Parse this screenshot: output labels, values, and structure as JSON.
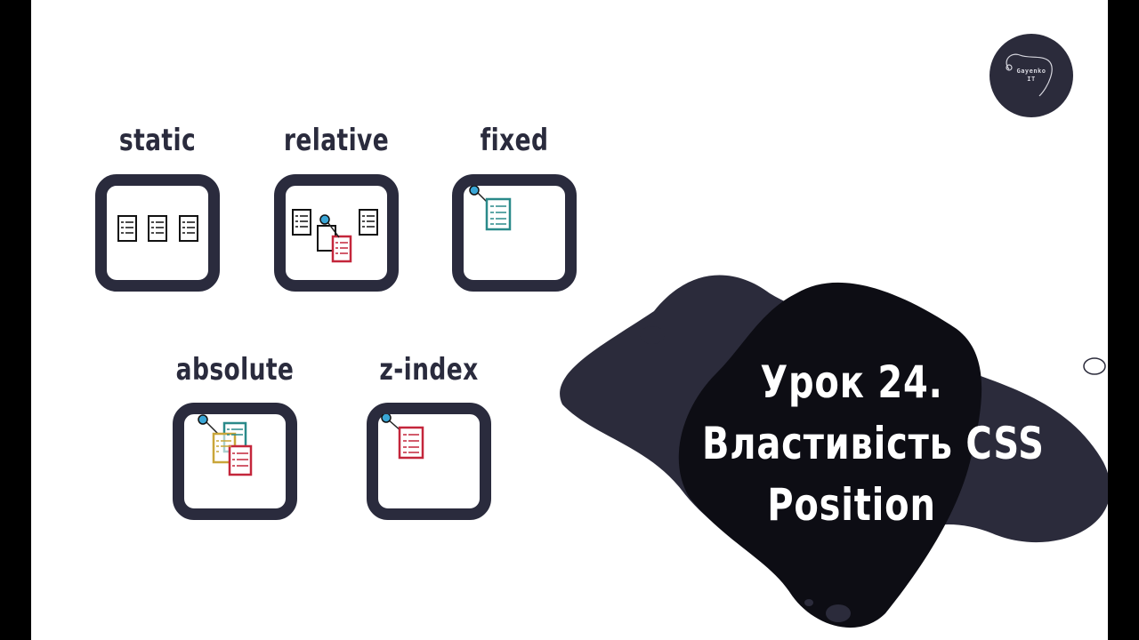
{
  "slide": {
    "title_lines": [
      "Урок 24.",
      "Властивість CSS",
      "Position"
    ],
    "logo": {
      "line1": "Gayenko",
      "line2": "IT"
    },
    "items": [
      {
        "label": "static",
        "icon": "static-position-icon"
      },
      {
        "label": "relative",
        "icon": "relative-position-icon"
      },
      {
        "label": "fixed",
        "icon": "fixed-position-icon"
      },
      {
        "label": "absolute",
        "icon": "absolute-position-icon"
      },
      {
        "label": "z-index",
        "icon": "z-index-icon"
      }
    ]
  },
  "colors": {
    "dark": "#2a2b3d",
    "blob_front": "#0d0d14",
    "teal": "#2a8a8a",
    "red": "#c4263b",
    "gold": "#c9a63a",
    "pin": "#3aa6d6"
  }
}
